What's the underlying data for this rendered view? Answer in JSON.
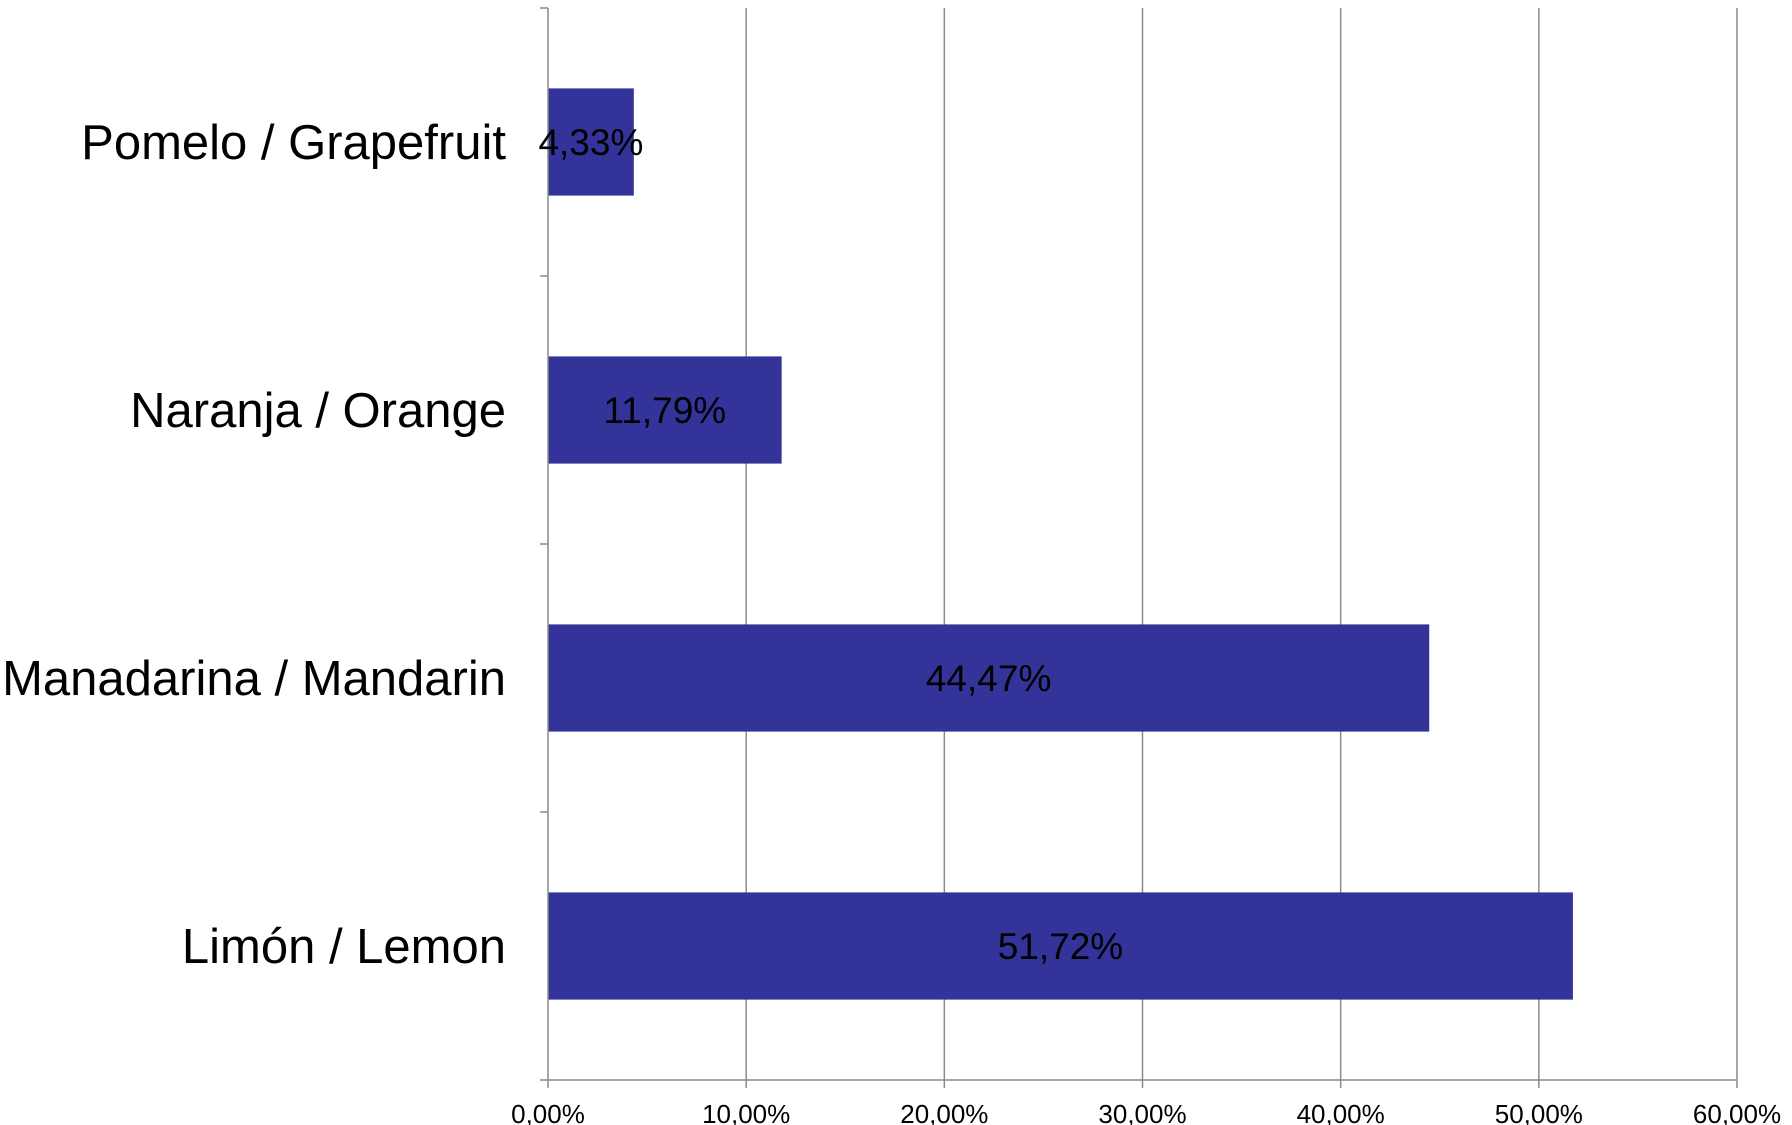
{
  "chart_data": {
    "type": "bar",
    "orientation": "horizontal",
    "title": "",
    "xlabel": "",
    "ylabel": "",
    "categories": [
      "Pomelo / Grapefruit",
      "Naranja / Orange",
      "Manadarina / Mandarin",
      "Limón / Lemon"
    ],
    "values": [
      4.33,
      11.79,
      44.47,
      51.72
    ],
    "data_labels": [
      "4,33%",
      "11,79%",
      "44,47%",
      "51,72%"
    ],
    "xlim": [
      0,
      60
    ],
    "x_ticks": [
      0,
      10,
      20,
      30,
      40,
      50,
      60
    ],
    "x_tick_labels": [
      "0,00%",
      "10,00%",
      "20,00%",
      "30,00%",
      "40,00%",
      "50,00%",
      "60,00%"
    ],
    "grid": "vertical",
    "legend": "none",
    "colors": {
      "bar": "#333399",
      "grid": "#8c8c8c",
      "axis": "#8c8c8c",
      "text": "#000000"
    }
  }
}
